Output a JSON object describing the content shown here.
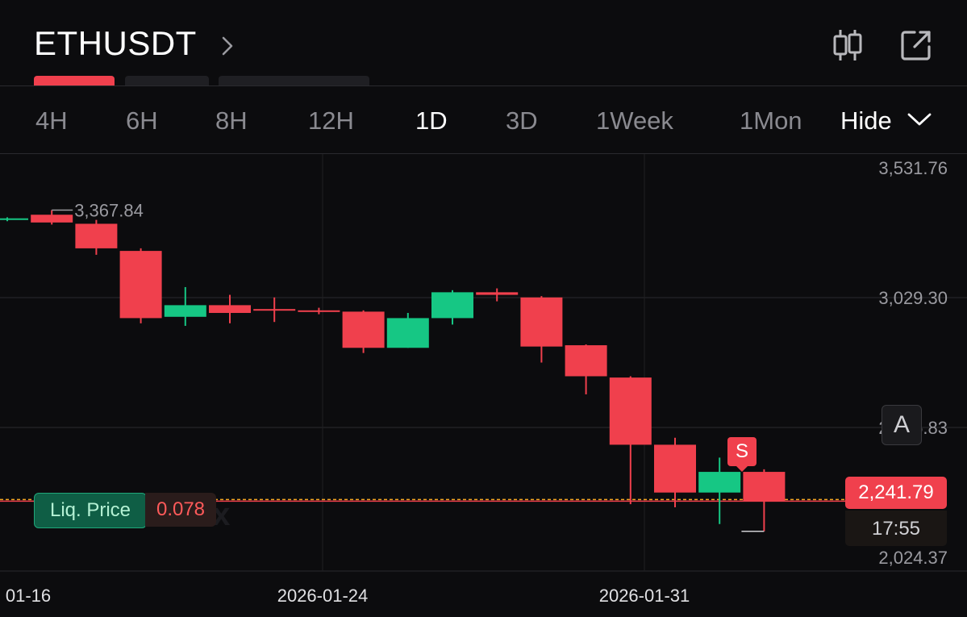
{
  "header": {
    "symbol": "ETHUSDT",
    "icons": [
      "chevron-right-icon",
      "candlestick-icon",
      "external-link-icon"
    ]
  },
  "timeframes": {
    "items": [
      "4H",
      "6H",
      "8H",
      "12H",
      "1D",
      "3D",
      "1Week",
      "1Mon"
    ],
    "active": "1D",
    "hide_label": "Hide"
  },
  "colors": {
    "up": "#16c784",
    "down": "#f0404d",
    "background": "#0c0c0e",
    "grid": "#2a2a2e",
    "liq_line": "#f5a623"
  },
  "watermark": "Bitunix",
  "chart_data": {
    "type": "candlestick",
    "x_ticks": [
      "01-16",
      "2026-01-24",
      "2026-01-31"
    ],
    "y_ticks": [
      "3,531.76",
      "3,029.30",
      "2,526.83",
      "2,024.37"
    ],
    "ylim": [
      2024.37,
      3531.76
    ],
    "max_label": "3,367.84",
    "last_price": "2,241.79",
    "countdown": "17:55",
    "liq_price_label": "Liq. Price",
    "liq_price_value": "0.078",
    "signal_marker": "S",
    "indicator_button": "A",
    "candles": [
      {
        "open": 3330,
        "close": 3336,
        "high": 3340,
        "low": 3325
      },
      {
        "open": 3350,
        "close": 3320,
        "high": 3367.84,
        "low": 3312
      },
      {
        "open": 3315,
        "close": 3220,
        "high": 3330,
        "low": 3195
      },
      {
        "open": 3210,
        "close": 2950,
        "high": 3220,
        "low": 2930
      },
      {
        "open": 2955,
        "close": 3000,
        "high": 3070,
        "low": 2920
      },
      {
        "open": 3000,
        "close": 2970,
        "high": 3040,
        "low": 2930
      },
      {
        "open": 2985,
        "close": 2980,
        "high": 3030,
        "low": 2935
      },
      {
        "open": 2980,
        "close": 2975,
        "high": 2990,
        "low": 2965
      },
      {
        "open": 2975,
        "close": 2835,
        "high": 2980,
        "low": 2815
      },
      {
        "open": 2835,
        "close": 2950,
        "high": 2970,
        "low": 2835
      },
      {
        "open": 2950,
        "close": 3050,
        "high": 3058,
        "low": 2925
      },
      {
        "open": 3050,
        "close": 3040,
        "high": 3065,
        "low": 3015
      },
      {
        "open": 3030,
        "close": 2840,
        "high": 3035,
        "low": 2778
      },
      {
        "open": 2845,
        "close": 2725,
        "high": 2848,
        "low": 2655
      },
      {
        "open": 2720,
        "close": 2460,
        "high": 2725,
        "low": 2230
      },
      {
        "open": 2460,
        "close": 2275,
        "high": 2487,
        "low": 2218
      },
      {
        "open": 2275,
        "close": 2355,
        "high": 2410,
        "low": 2153
      },
      {
        "open": 2355,
        "close": 2242,
        "high": 2365,
        "low": 2125
      }
    ]
  }
}
